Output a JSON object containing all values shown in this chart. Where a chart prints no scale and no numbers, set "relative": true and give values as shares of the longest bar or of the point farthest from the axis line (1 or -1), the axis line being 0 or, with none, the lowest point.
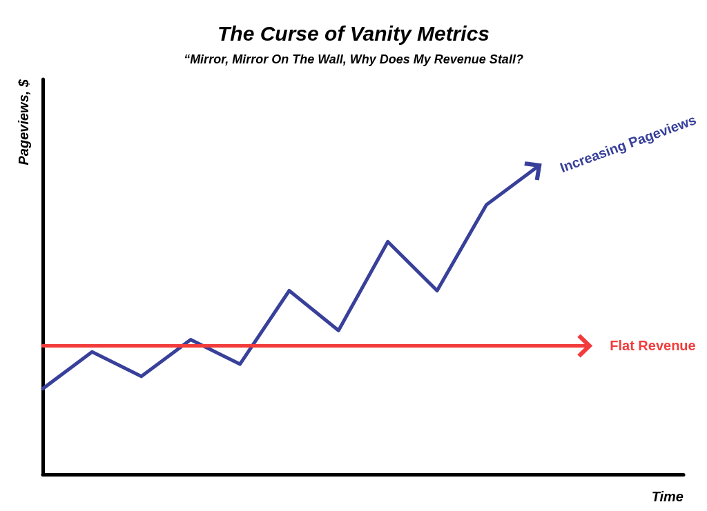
{
  "chart_data": {
    "type": "line",
    "title": "The Curse of Vanity Metrics",
    "subtitle": "“Mirror, Mirror On The Wall, Why Does My Revenue Stall?",
    "xlabel": "Time",
    "ylabel": "Pageviews, $",
    "relative": true,
    "categories": [
      null,
      null,
      null,
      null,
      null,
      null,
      null,
      null,
      null,
      null,
      null,
      null,
      null,
      null
    ],
    "series": [
      {
        "name": "Increasing Pageviews",
        "color": "#38409a",
        "values": [
          0.28,
          0.4,
          0.32,
          0.44,
          0.36,
          0.6,
          0.47,
          0.76,
          0.6,
          0.88,
          1.0,
          null,
          null,
          null
        ]
      },
      {
        "name": "Flat Revenue",
        "color": "#f23c3c",
        "values": [
          0.42,
          0.42,
          0.42,
          0.42,
          0.42,
          0.42,
          0.42,
          0.42,
          0.42,
          0.42,
          0.42,
          0.42,
          null,
          null
        ]
      }
    ],
    "legend": false,
    "grid": false,
    "marker": "none",
    "line_style": "solid"
  }
}
